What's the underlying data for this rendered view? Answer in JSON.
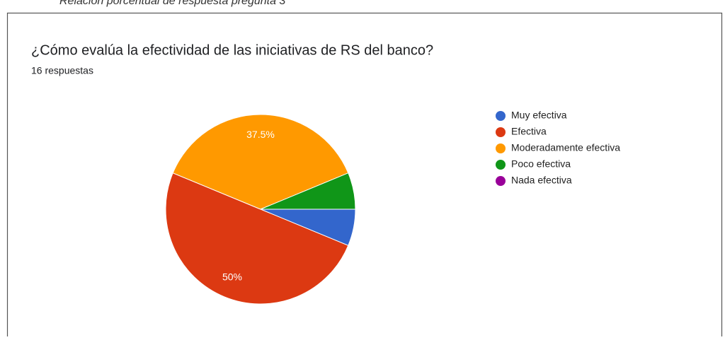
{
  "caption": "Relación porcentual de respuesta pregunta 3",
  "chart_data": {
    "type": "pie",
    "title": "¿Cómo evalúa la efectividad de las iniciativas de RS del banco?",
    "subtitle": "16 respuestas",
    "categories": [
      "Muy efectiva",
      "Efectiva",
      "Moderadamente efectiva",
      "Poco efectiva",
      "Nada efectiva"
    ],
    "values": [
      6.25,
      50,
      37.5,
      6.25,
      0
    ],
    "value_labels": [
      null,
      "50%",
      "37.5%",
      null,
      null
    ],
    "colors": [
      "#3366cc",
      "#dc3912",
      "#ff9900",
      "#109618",
      "#990099"
    ],
    "legend": "right"
  }
}
